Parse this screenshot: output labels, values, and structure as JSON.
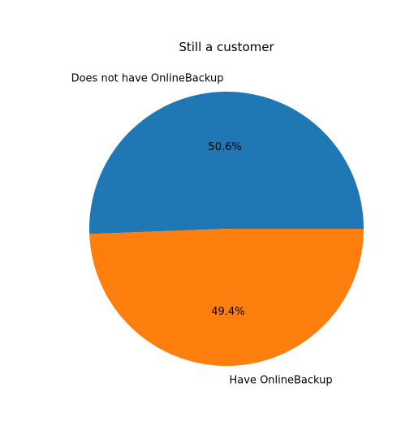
{
  "chart_data": {
    "type": "pie",
    "title": "Still a customer",
    "slices": [
      {
        "label": "Does not have OnlineBackup",
        "percent_label": "50.6%",
        "value": 50.6,
        "color": "#1f77b4"
      },
      {
        "label": "Have OnlineBackup",
        "percent_label": "49.4%",
        "value": 49.4,
        "color": "#ff7f0e"
      }
    ]
  }
}
